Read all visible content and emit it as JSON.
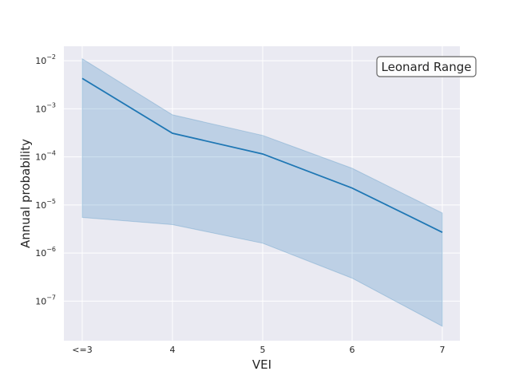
{
  "chart_data": {
    "type": "line",
    "xlabel": "VEI",
    "ylabel": "Annual probability",
    "yscale": "log",
    "ylim": [
      1.5e-08,
      0.02
    ],
    "grid": true,
    "categories": [
      "<=3",
      "4",
      "5",
      "6",
      "7"
    ],
    "series": [
      {
        "values": [
          0.0043,
          0.00031,
          0.000115,
          2.25e-05,
          2.7e-06
        ],
        "lower": [
          5.5e-06,
          3.9e-06,
          1.6e-06,
          3e-07,
          3e-08
        ],
        "upper": [
          0.011,
          0.00075,
          0.00028,
          5.8e-05,
          6.8e-06
        ]
      }
    ],
    "yticks": [
      {
        "base": "10",
        "exp": "−7",
        "value": 1e-07
      },
      {
        "base": "10",
        "exp": "−6",
        "value": 1e-06
      },
      {
        "base": "10",
        "exp": "−5",
        "value": 1e-05
      },
      {
        "base": "10",
        "exp": "−4",
        "value": 0.0001
      },
      {
        "base": "10",
        "exp": "−3",
        "value": 0.001
      },
      {
        "base": "10",
        "exp": "−2",
        "value": 0.01
      }
    ],
    "annotation": "Leonard Range",
    "colors": {
      "line": "#1f77b4",
      "band": "#a3bfdc",
      "plot_bg": "#eaeaf2",
      "grid": "#ffffff"
    }
  }
}
